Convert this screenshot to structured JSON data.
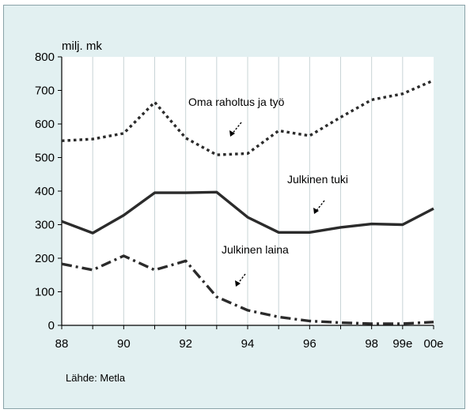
{
  "chart_data": {
    "type": "line",
    "unit_label": "milj. mk",
    "source": "Lähde: Metla",
    "x_tick_labels": [
      "88",
      "90",
      "92",
      "94",
      "96",
      "98",
      "99e",
      "00e"
    ],
    "x_tick_values": [
      88,
      90,
      92,
      94,
      96,
      98,
      99,
      100
    ],
    "y_ticks": [
      0,
      100,
      200,
      300,
      400,
      500,
      600,
      700,
      800
    ],
    "xlim": [
      88,
      100
    ],
    "ylim": [
      0,
      800
    ],
    "grid": "vertical",
    "legend": "inline annotations",
    "series": [
      {
        "name": "Oma raholtus ja työ",
        "style": "dotted",
        "x": [
          88,
          89,
          90,
          91,
          92,
          93,
          94,
          95,
          96,
          97,
          98,
          99,
          100
        ],
        "values": [
          550,
          555,
          572,
          665,
          558,
          508,
          512,
          580,
          565,
          620,
          672,
          690,
          730
        ]
      },
      {
        "name": "Julkinen tuki",
        "style": "solid",
        "x": [
          88,
          89,
          90,
          91,
          92,
          93,
          94,
          95,
          96,
          97,
          98,
          99,
          100
        ],
        "values": [
          310,
          275,
          328,
          395,
          395,
          397,
          322,
          277,
          277,
          292,
          302,
          300,
          348
        ]
      },
      {
        "name": "Julkinen laina",
        "style": "dash-dot",
        "x": [
          88,
          89,
          90,
          91,
          92,
          93,
          94,
          95,
          96,
          97,
          98,
          99,
          100
        ],
        "values": [
          183,
          165,
          207,
          165,
          192,
          85,
          45,
          25,
          13,
          8,
          5,
          5,
          10
        ]
      }
    ],
    "annotations": [
      {
        "text": "Oma raholtus ja työ",
        "series": 0
      },
      {
        "text": "Julkinen tuki",
        "series": 1
      },
      {
        "text": "Julkinen laina",
        "series": 2
      }
    ]
  },
  "colors": {
    "panel_background": "#e2f0f1",
    "plot_background": "#ffffff",
    "line": "#2b2b2b",
    "grid": "#c8d4d6"
  }
}
